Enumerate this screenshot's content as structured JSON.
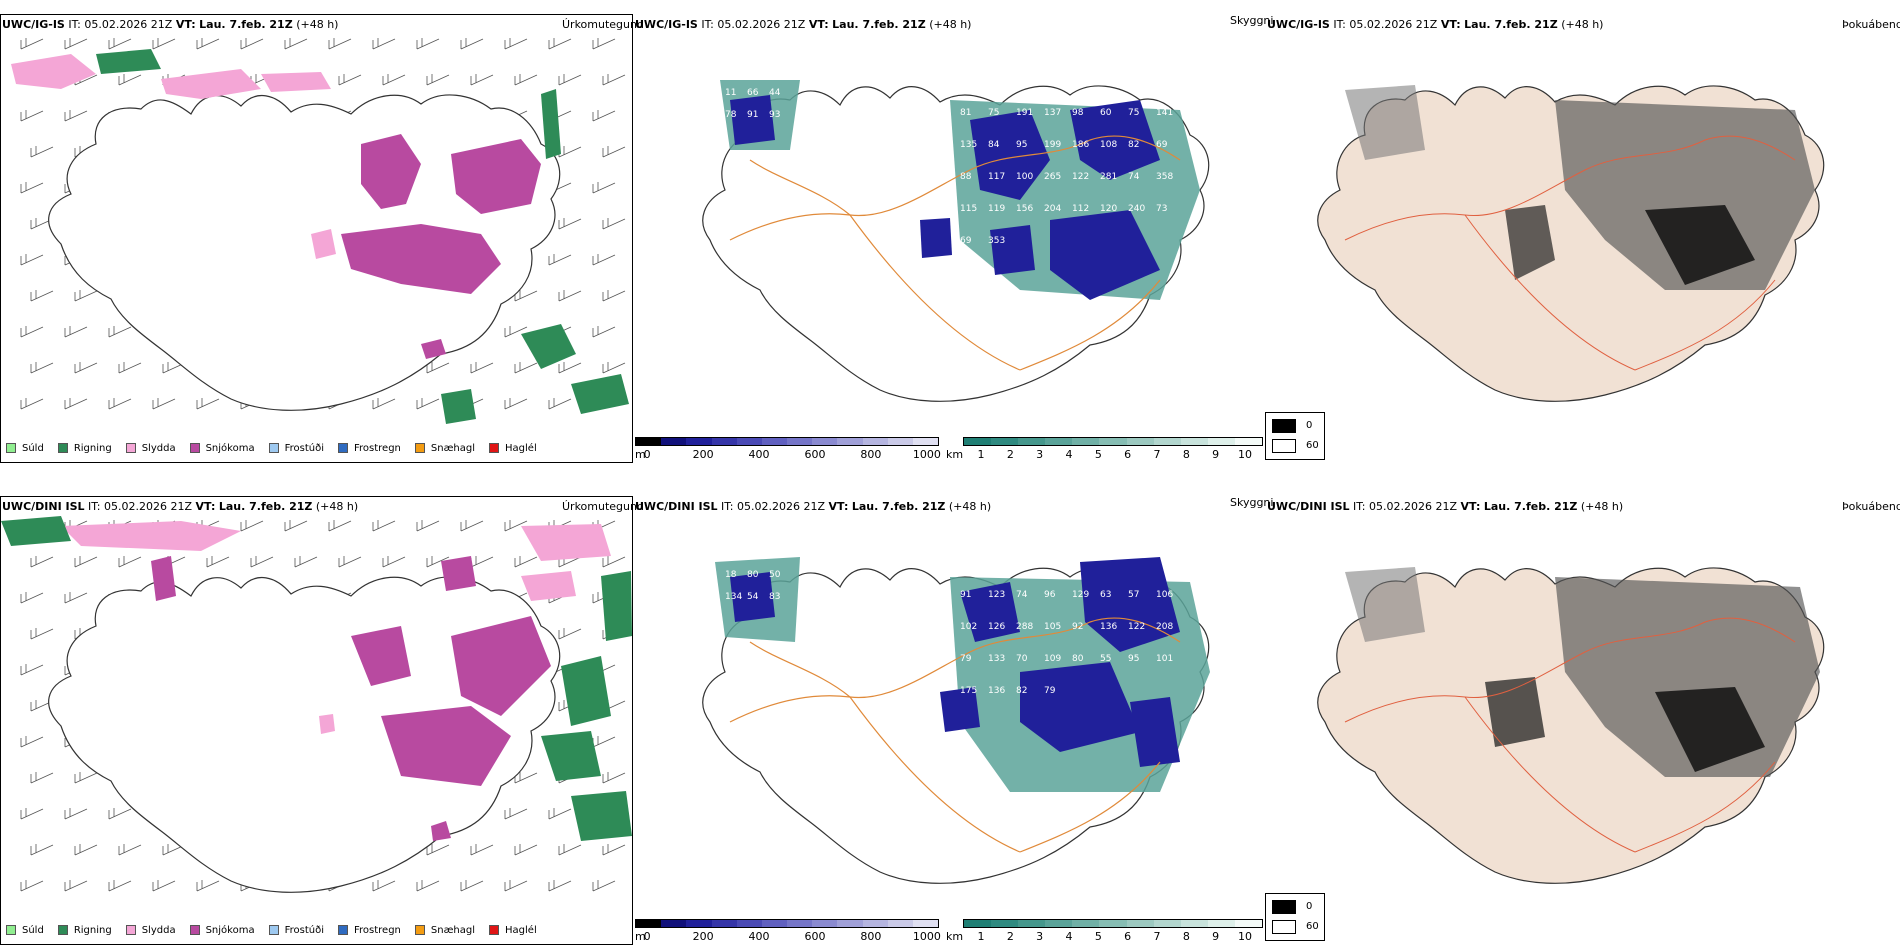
{
  "colors": {
    "suld": "#90ee90",
    "rigning": "#2e8b57",
    "slydda": "#f4a6d6",
    "snjokoma": "#b84aa0",
    "frostudi": "#9ec9f0",
    "frostregn": "#2f6bc0",
    "snaehagl": "#f39c12",
    "haglel": "#e01515",
    "ocean": "#ffffff",
    "land": "#f1e1d4",
    "road": "#e08a3a",
    "coast": "#333333"
  },
  "rows": [
    {
      "model": "UWC/IG-IS",
      "it_label": "IT:",
      "it_value": "05.02.2026 21Z",
      "vt_label": "VT:",
      "vt_value": "Lau. 7.feb. 21Z",
      "lead": "(+48 h)",
      "precip_title": "Úrkomutegund",
      "vis_title": "Skyggni",
      "fog_title": "Þokuábendi",
      "visibility_labels": [
        "11",
        "66",
        "44",
        "78",
        "91",
        "93",
        "81",
        "75",
        "191",
        "137",
        "98",
        "60",
        "75",
        "141",
        "135",
        "84",
        "95",
        "199",
        "186",
        "108",
        "82",
        "69",
        "88",
        "117",
        "100",
        "265",
        "122",
        "281",
        "74",
        "358",
        "115",
        "119",
        "156",
        "204",
        "112",
        "120",
        "240",
        "73",
        "69",
        "353"
      ]
    },
    {
      "model": "UWC/DINI ISL",
      "it_label": "IT:",
      "it_value": "05.02.2026 21Z",
      "vt_label": "VT:",
      "vt_value": "Lau. 7.feb. 21Z",
      "lead": "(+48 h)",
      "precip_title": "Úrkomutegund",
      "vis_title": "Skyggni",
      "fog_title": "Þokuábendi",
      "visibility_labels": [
        "18",
        "80",
        "50",
        "134",
        "54",
        "83",
        "91",
        "123",
        "74",
        "96",
        "129",
        "63",
        "57",
        "106",
        "102",
        "126",
        "288",
        "105",
        "92",
        "136",
        "122",
        "208",
        "79",
        "133",
        "70",
        "109",
        "80",
        "55",
        "95",
        "101",
        "175",
        "136",
        "82",
        "79"
      ]
    }
  ],
  "precip_legend": [
    {
      "label": "Súld",
      "color": "#90ee90"
    },
    {
      "label": "Rigning",
      "color": "#2e8b57"
    },
    {
      "label": "Slydda",
      "color": "#f4a6d6"
    },
    {
      "label": "Snjókoma",
      "color": "#b84aa0"
    },
    {
      "label": "Frostúði",
      "color": "#9ec9f0"
    },
    {
      "label": "Frostregn",
      "color": "#2f6bc0"
    },
    {
      "label": "Snæhagl",
      "color": "#f39c12"
    },
    {
      "label": "Haglél",
      "color": "#e01515"
    }
  ],
  "visibility_scale_m": {
    "unit": "m",
    "ticks": [
      "0",
      "200",
      "400",
      "600",
      "800",
      "1000"
    ],
    "colors": [
      "#000000",
      "#10107a",
      "#20209a",
      "#3535a8",
      "#4a4ab5",
      "#6060c0",
      "#7575c8",
      "#8a8ad0",
      "#a0a0d8",
      "#b5b5e0",
      "#cacae8",
      "#e0e0f2"
    ]
  },
  "visibility_scale_km": {
    "unit": "km",
    "ticks": [
      "1",
      "2",
      "3",
      "4",
      "5",
      "6",
      "7",
      "8",
      "9",
      "10"
    ],
    "colors": [
      "#1f7f74",
      "#2f8a80",
      "#45978c",
      "#5aa399",
      "#70b0a6",
      "#86bdb3",
      "#9cc9c0",
      "#b2d6ce",
      "#c8e3dc",
      "#def0ea",
      "#f4fbf8"
    ]
  },
  "fog_legend": [
    {
      "label": "0",
      "color": "#000000"
    },
    {
      "label": "60",
      "color": "#ffffff"
    }
  ]
}
